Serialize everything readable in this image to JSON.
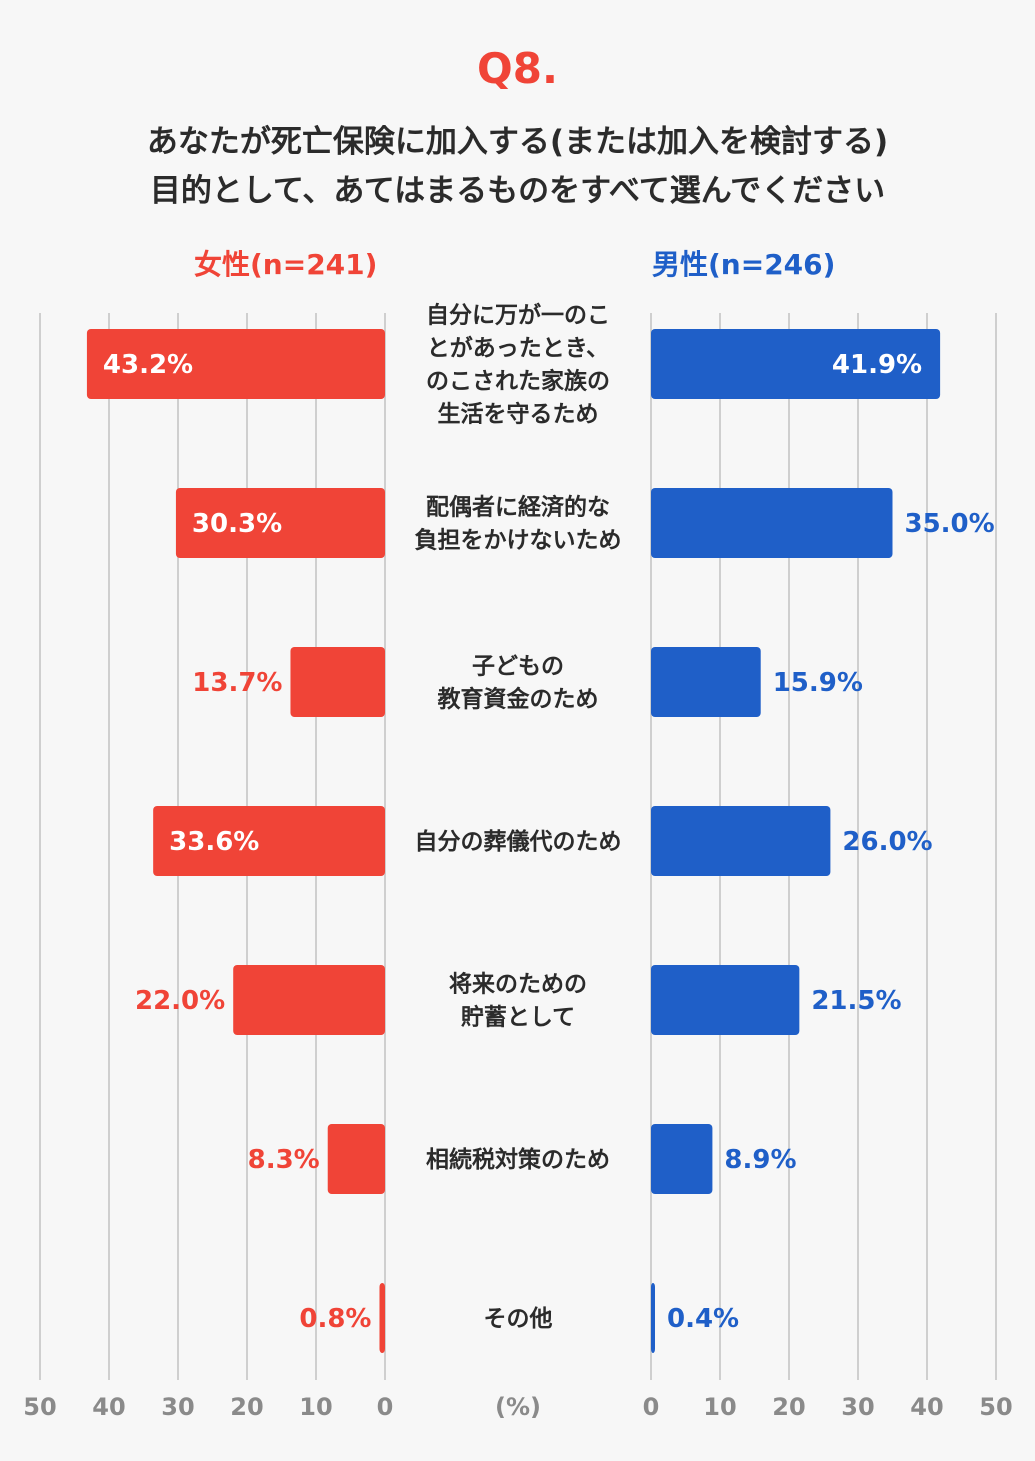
{
  "header": {
    "question_number": "Q8.",
    "question_line1": "あなたが死亡保険に加入する(または加入を検討する)",
    "question_line2": "目的として、あてはまるものをすべて選んでください"
  },
  "legend": {
    "female": "女性(n=241)",
    "male": "男性(n=246)"
  },
  "colors": {
    "female": "#f04437",
    "male": "#1f5fc8",
    "grid": "#cfcfcf",
    "text": "#2b2b2b",
    "tick": "#8a8a8a"
  },
  "chart_data": {
    "type": "bar",
    "orientation": "horizontal-butterfly",
    "title": "あなたが死亡保険に加入する(または加入を検討する)目的として、あてはまるものをすべて選んでください",
    "unit_label": "(%)",
    "categories": [
      [
        "自分に万が一のこ",
        "とがあったとき、",
        "のこされた家族の",
        "生活を守るため"
      ],
      [
        "配偶者に経済的な",
        "負担をかけないため"
      ],
      [
        "子どもの",
        "教育資金のため"
      ],
      [
        "自分の葬儀代のため"
      ],
      [
        "将来のための",
        "貯蓄として"
      ],
      [
        "相続税対策のため"
      ],
      [
        "その他"
      ]
    ],
    "series": [
      {
        "name": "女性(n=241)",
        "side": "left",
        "values": [
          43.2,
          30.3,
          13.7,
          33.6,
          22.0,
          8.3,
          0.8
        ],
        "labels": [
          "43.2%",
          "30.3%",
          "13.7%",
          "33.6%",
          "22.0%",
          "8.3%",
          "0.8%"
        ]
      },
      {
        "name": "男性(n=246)",
        "side": "right",
        "values": [
          41.9,
          35.0,
          15.9,
          26.0,
          21.5,
          8.9,
          0.4
        ],
        "labels": [
          "41.9%",
          "35.0%",
          "15.9%",
          "26.0%",
          "21.5%",
          "8.9%",
          "0.4%"
        ]
      }
    ],
    "xlim": [
      0,
      50
    ],
    "ticks": [
      50,
      40,
      30,
      20,
      10,
      0
    ],
    "tick_labels": [
      "50",
      "40",
      "30",
      "20",
      "10",
      "0"
    ],
    "grid": true
  }
}
